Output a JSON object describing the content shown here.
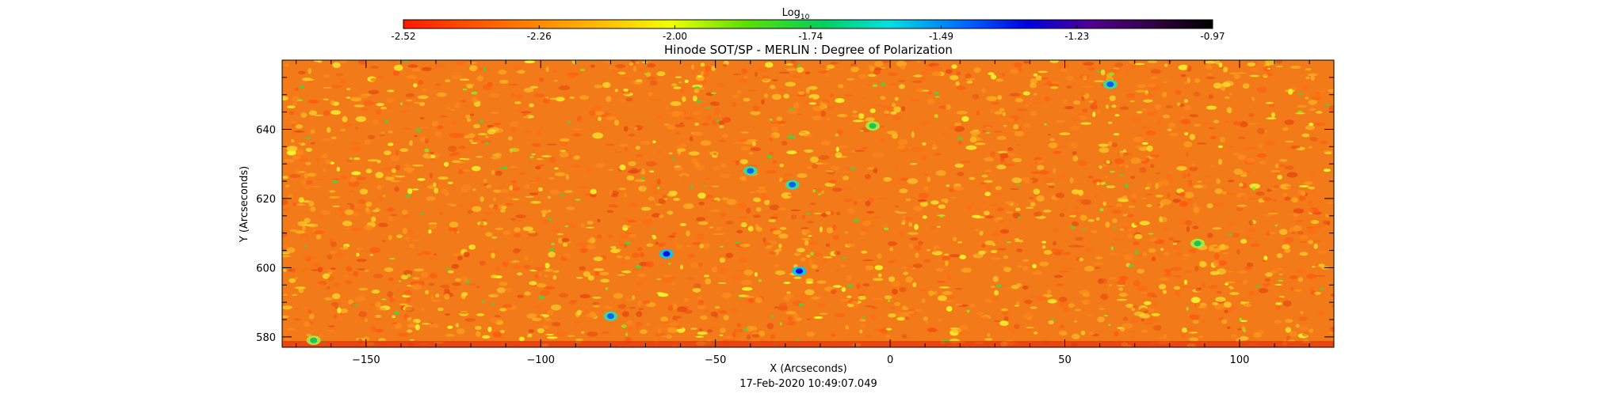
{
  "chart_data": {
    "type": "heatmap",
    "title": "Hinode SOT/SP - MERLIN : Degree of Polarization",
    "xlabel": "X (Arcseconds)",
    "ylabel": "Y (Arcseconds)",
    "timestamp": "17-Feb-2020 10:49:07.049",
    "xlim": [
      -174,
      127
    ],
    "ylim": [
      577,
      660
    ],
    "xticks": [
      -150,
      -100,
      -50,
      0,
      50,
      100
    ],
    "yticks": [
      580,
      600,
      620,
      640
    ],
    "colorbar": {
      "label_base": "Log",
      "label_sub": "10",
      "range": [
        -2.52,
        -0.97
      ],
      "ticks": [
        "-2.52",
        "-2.26",
        "-2.00",
        "-1.74",
        "-1.49",
        "-1.23",
        "-0.97"
      ],
      "colormap": "rainbow (red-yellow-green-cyan-blue-purple-black)"
    },
    "field": {
      "background_level": "-2.40 to -2.20",
      "notable_features": [
        {
          "x": -64,
          "y": 604,
          "level": "-1.23"
        },
        {
          "x": -26,
          "y": 599,
          "level": "-1.23"
        },
        {
          "x": -28,
          "y": 624,
          "level": "-1.49"
        },
        {
          "x": -40,
          "y": 628,
          "level": "-1.49"
        },
        {
          "x": -80,
          "y": 586,
          "level": "-1.49"
        },
        {
          "x": 63,
          "y": 653,
          "level": "-1.49"
        },
        {
          "x": -5,
          "y": 641,
          "level": "-1.74"
        },
        {
          "x": 88,
          "y": 607,
          "level": "-1.74"
        },
        {
          "x": -165,
          "y": 579,
          "level": "-1.74"
        }
      ]
    }
  }
}
